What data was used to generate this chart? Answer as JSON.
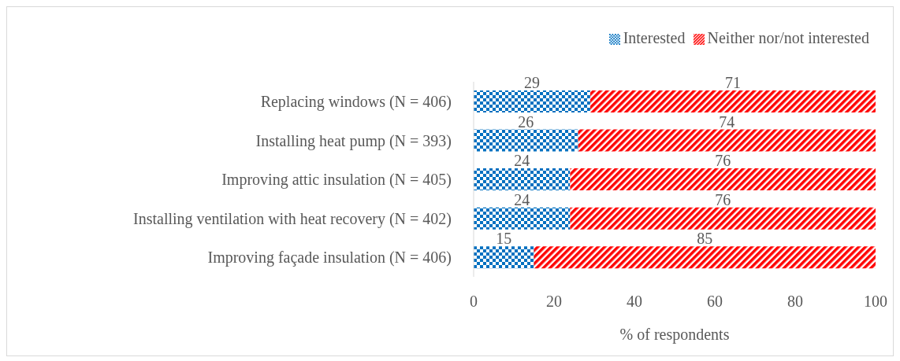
{
  "chart_data": {
    "type": "bar",
    "orientation": "horizontal",
    "stacked": true,
    "xlabel": "% of respondents",
    "categories": [
      "Replacing windows (N = 406)",
      "Installing heat pump (N = 393)",
      "Improving attic insulation (N = 405)",
      "Installing ventilation with heat recovery (N = 402)",
      "Improving façade insulation (N = 406)"
    ],
    "series": [
      {
        "name": "Interested",
        "color": "#0070c0",
        "values": [
          29,
          26,
          24,
          24,
          15
        ]
      },
      {
        "name": "Neither nor/not interested",
        "color": "#ff0000",
        "values": [
          71,
          74,
          76,
          76,
          85
        ]
      }
    ],
    "xlim": [
      0,
      100
    ],
    "xticks": [
      0,
      20,
      40,
      60,
      80,
      100
    ],
    "grid": false,
    "legend": "top right",
    "data_labels": true
  }
}
